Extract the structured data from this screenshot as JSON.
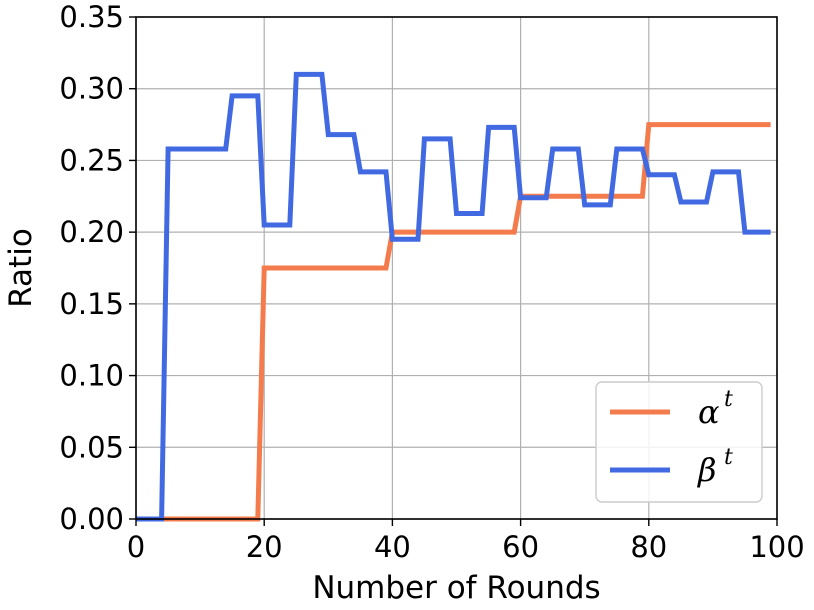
{
  "chart_data": {
    "type": "line",
    "title": "",
    "xlabel": "Number of Rounds",
    "ylabel": "Ratio",
    "xlim": [
      0,
      100
    ],
    "ylim": [
      0,
      0.35
    ],
    "x_ticks": [
      "0",
      "20",
      "40",
      "60",
      "80",
      "100"
    ],
    "y_ticks": [
      "0.00",
      "0.05",
      "0.10",
      "0.15",
      "0.20",
      "0.25",
      "0.30",
      "0.35"
    ],
    "grid": true,
    "legend_position": "lower-right",
    "series": [
      {
        "name": "α",
        "sup": "t",
        "color": "#f47c4c",
        "points": [
          [
            0,
            0
          ],
          [
            19,
            0
          ],
          [
            20,
            0.175
          ],
          [
            39,
            0.175
          ],
          [
            40,
            0.2
          ],
          [
            59,
            0.2
          ],
          [
            60,
            0.225
          ],
          [
            79,
            0.225
          ],
          [
            80,
            0.275
          ],
          [
            99,
            0.275
          ]
        ]
      },
      {
        "name": "β",
        "sup": "t",
        "color": "#4169e1",
        "points": [
          [
            0,
            0
          ],
          [
            4,
            0
          ],
          [
            5,
            0.258
          ],
          [
            14,
            0.258
          ],
          [
            15,
            0.295
          ],
          [
            19,
            0.295
          ],
          [
            20,
            0.205
          ],
          [
            24,
            0.205
          ],
          [
            25,
            0.31
          ],
          [
            29,
            0.31
          ],
          [
            30,
            0.268
          ],
          [
            34,
            0.268
          ],
          [
            35,
            0.242
          ],
          [
            39,
            0.242
          ],
          [
            40,
            0.195
          ],
          [
            44,
            0.195
          ],
          [
            45,
            0.265
          ],
          [
            49,
            0.265
          ],
          [
            50,
            0.213
          ],
          [
            54,
            0.213
          ],
          [
            55,
            0.273
          ],
          [
            59,
            0.273
          ],
          [
            60,
            0.224
          ],
          [
            64,
            0.224
          ],
          [
            65,
            0.258
          ],
          [
            69,
            0.258
          ],
          [
            70,
            0.219
          ],
          [
            74,
            0.219
          ],
          [
            75,
            0.258
          ],
          [
            79,
            0.258
          ],
          [
            80,
            0.24
          ],
          [
            84,
            0.24
          ],
          [
            85,
            0.221
          ],
          [
            89,
            0.221
          ],
          [
            90,
            0.242
          ],
          [
            94,
            0.242
          ],
          [
            95,
            0.2
          ],
          [
            99,
            0.2
          ]
        ]
      }
    ]
  }
}
